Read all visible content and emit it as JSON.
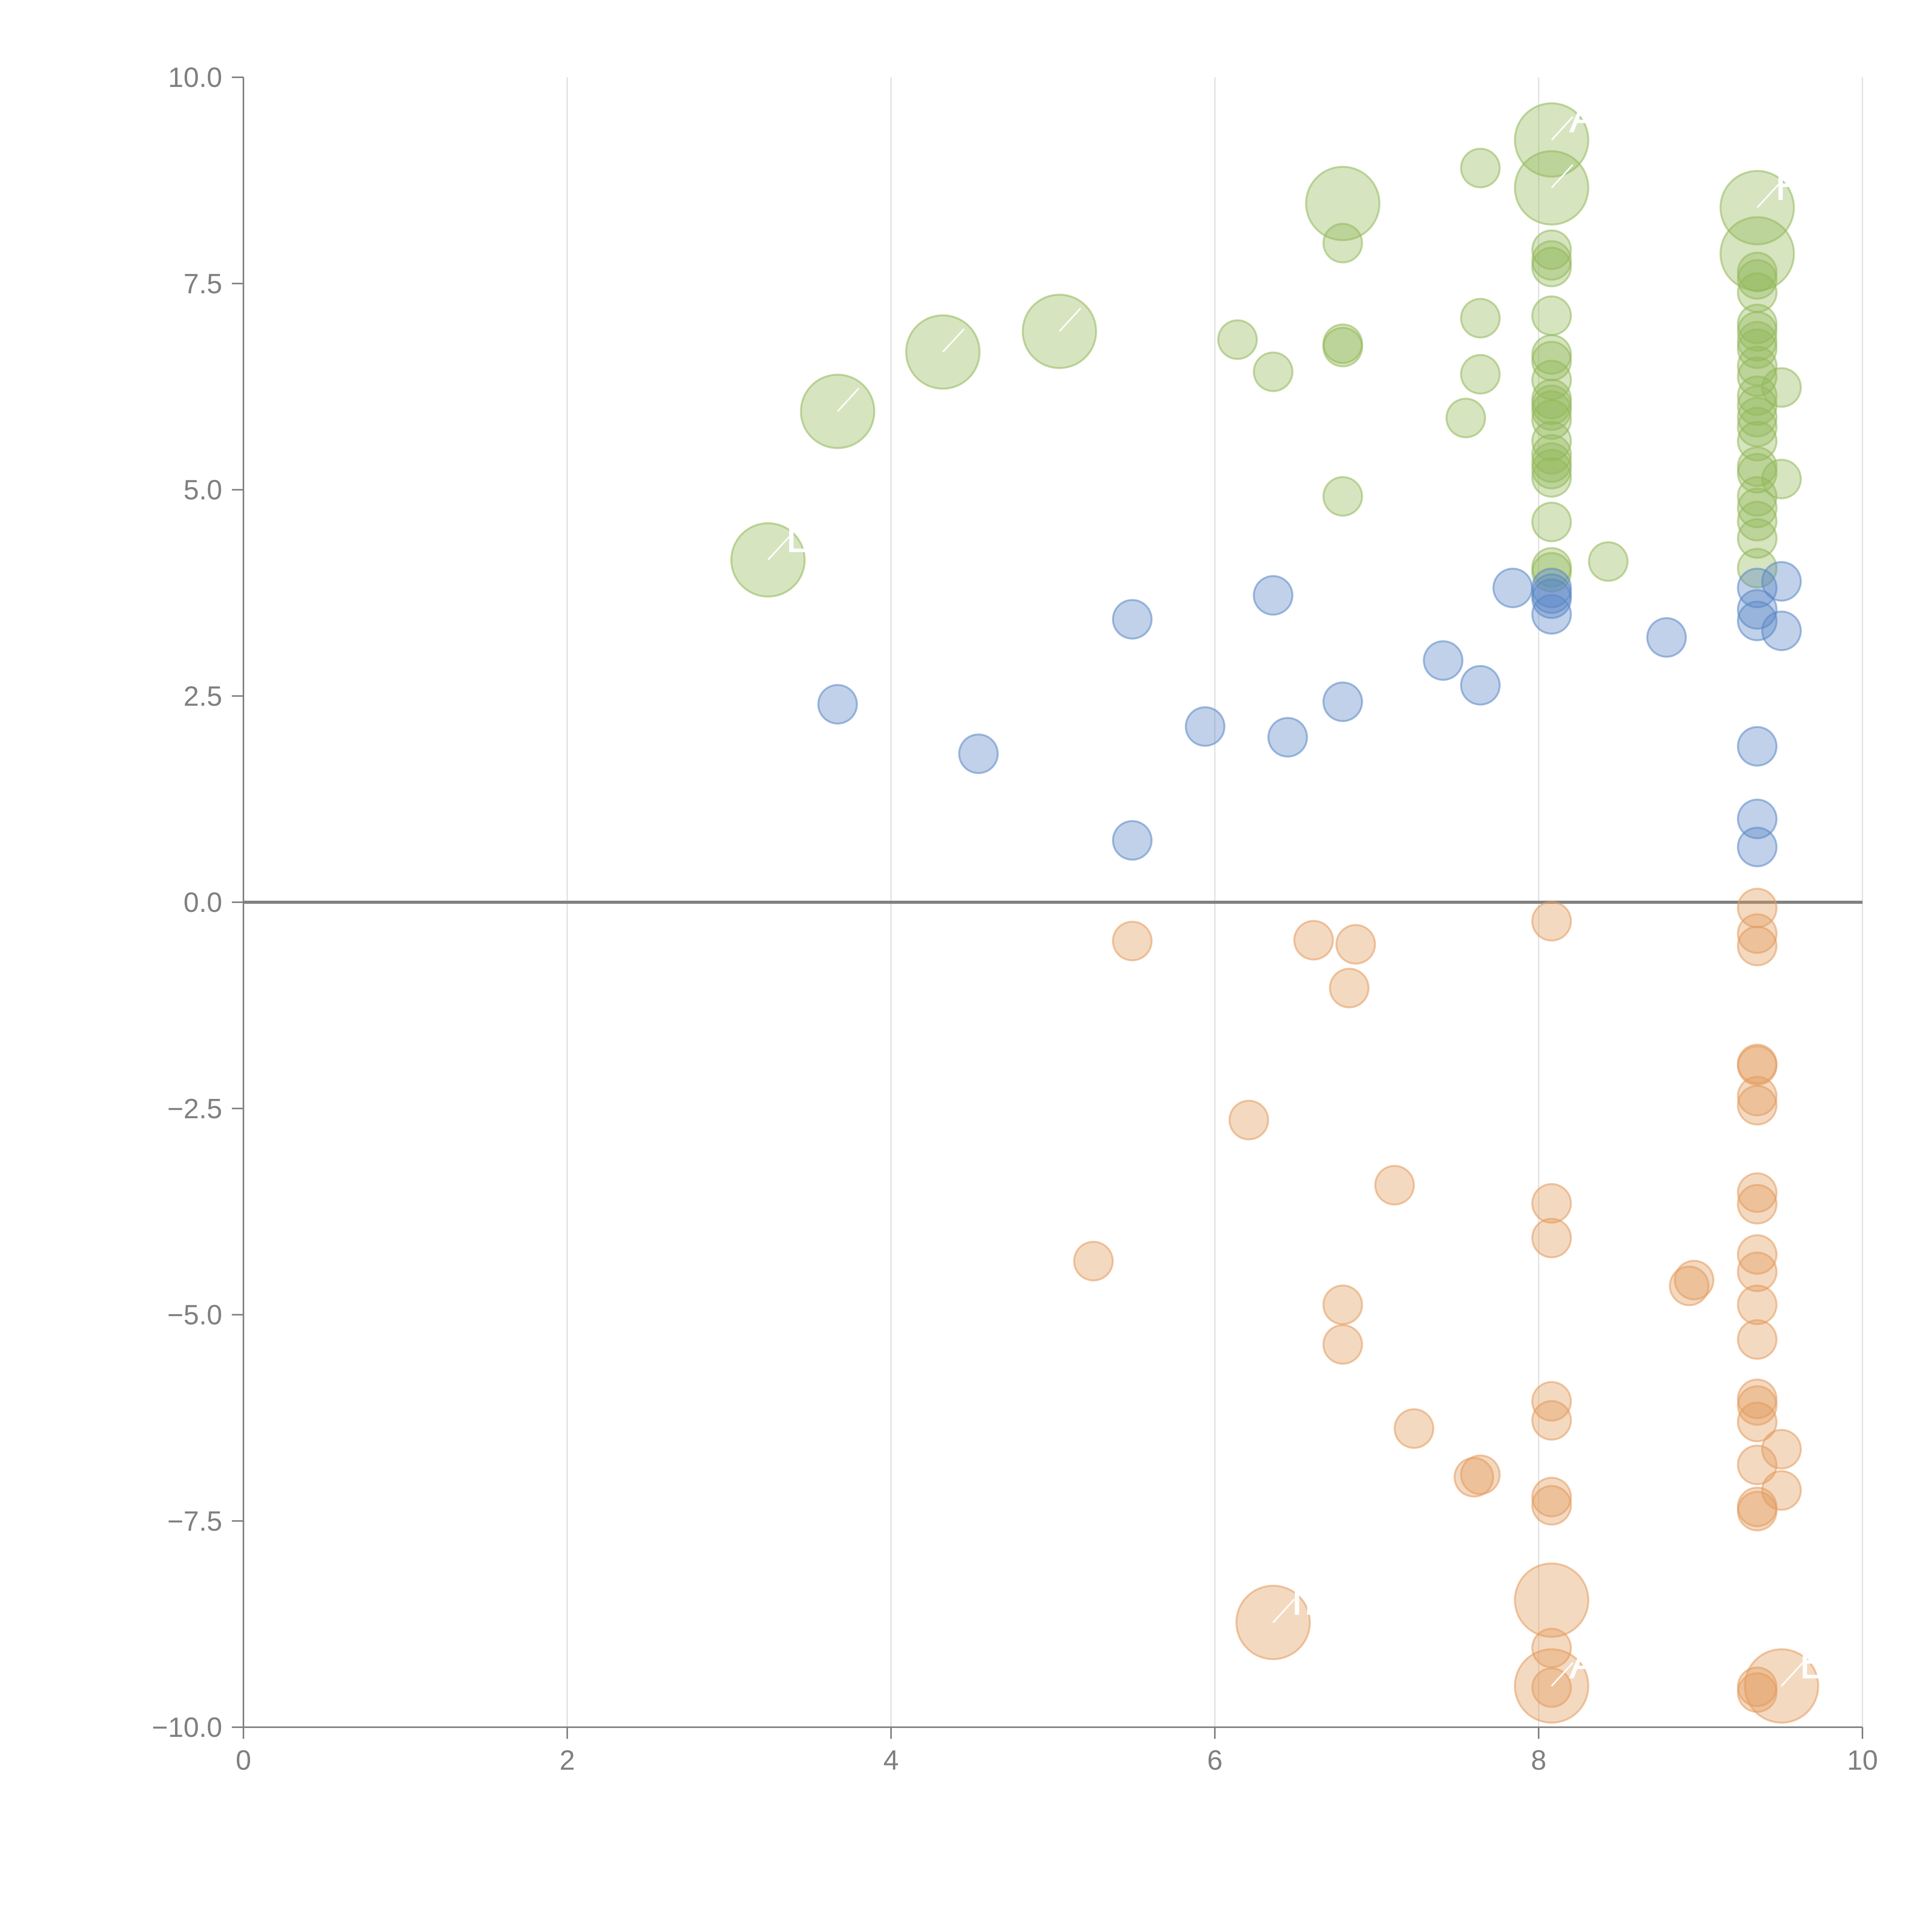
{
  "chart_data": {
    "type": "scatter",
    "title": "",
    "xlabel": "",
    "ylabel": "",
    "xlim": [
      0,
      10
    ],
    "ylim": [
      -10,
      10
    ],
    "grid": "vertical",
    "legend": "none",
    "x_ticks": [
      "0",
      "2",
      "4",
      "6",
      "8",
      "10"
    ],
    "y_ticks": [
      "10.0",
      "7.5",
      "5.0",
      "2.5",
      "0.0",
      "−2.5",
      "−5.0",
      "−7.5",
      "−10.0"
    ],
    "colors": {
      "green": "#93b85a",
      "blue": "#5a87c6",
      "orange": "#e39a5c",
      "axis": "#808080",
      "grid": "#dddddd"
    },
    "series": [
      {
        "name": "green",
        "color": "#93b85a",
        "points": [
          {
            "x": 3.24,
            "y": 4.15,
            "size": "large",
            "label": "L"
          },
          {
            "x": 3.67,
            "y": 5.95,
            "size": "large",
            "label": ""
          },
          {
            "x": 4.32,
            "y": 6.67,
            "size": "large",
            "label": ""
          },
          {
            "x": 5.04,
            "y": 6.92,
            "size": "large",
            "label": ""
          },
          {
            "x": 6.14,
            "y": 6.82
          },
          {
            "x": 6.36,
            "y": 6.43
          },
          {
            "x": 6.79,
            "y": 8.47,
            "size": "large"
          },
          {
            "x": 6.79,
            "y": 7.99
          },
          {
            "x": 6.79,
            "y": 6.77
          },
          {
            "x": 6.79,
            "y": 6.73
          },
          {
            "x": 6.79,
            "y": 4.92
          },
          {
            "x": 7.55,
            "y": 5.87
          },
          {
            "x": 7.64,
            "y": 8.9
          },
          {
            "x": 7.64,
            "y": 7.08
          },
          {
            "x": 7.64,
            "y": 6.4
          },
          {
            "x": 8.08,
            "y": 9.24,
            "size": "large",
            "label": "A"
          },
          {
            "x": 8.08,
            "y": 8.66,
            "size": "large",
            "label": ""
          },
          {
            "x": 8.08,
            "y": 7.91
          },
          {
            "x": 8.08,
            "y": 7.78
          },
          {
            "x": 8.08,
            "y": 7.7
          },
          {
            "x": 8.08,
            "y": 7.11
          },
          {
            "x": 8.08,
            "y": 6.64
          },
          {
            "x": 8.08,
            "y": 6.56
          },
          {
            "x": 8.08,
            "y": 6.33
          },
          {
            "x": 8.08,
            "y": 6.1
          },
          {
            "x": 8.08,
            "y": 6.03
          },
          {
            "x": 8.08,
            "y": 5.96
          },
          {
            "x": 8.08,
            "y": 5.85
          },
          {
            "x": 8.08,
            "y": 5.59
          },
          {
            "x": 8.08,
            "y": 5.43
          },
          {
            "x": 8.08,
            "y": 5.33
          },
          {
            "x": 8.08,
            "y": 5.25
          },
          {
            "x": 8.08,
            "y": 5.15
          },
          {
            "x": 8.08,
            "y": 4.61
          },
          {
            "x": 8.08,
            "y": 4.06
          },
          {
            "x": 8.08,
            "y": 4.0
          },
          {
            "x": 8.43,
            "y": 4.13
          },
          {
            "x": 9.35,
            "y": 8.42,
            "size": "large",
            "label": "FX"
          },
          {
            "x": 9.35,
            "y": 7.86,
            "size": "large"
          },
          {
            "x": 9.35,
            "y": 7.64
          },
          {
            "x": 9.35,
            "y": 7.55
          },
          {
            "x": 9.35,
            "y": 7.39
          },
          {
            "x": 9.35,
            "y": 7.01
          },
          {
            "x": 9.35,
            "y": 6.92
          },
          {
            "x": 9.35,
            "y": 6.8
          },
          {
            "x": 9.35,
            "y": 6.71
          },
          {
            "x": 9.35,
            "y": 6.5
          },
          {
            "x": 9.35,
            "y": 6.37
          },
          {
            "x": 9.35,
            "y": 6.14
          },
          {
            "x": 9.35,
            "y": 6.02
          },
          {
            "x": 9.35,
            "y": 5.88
          },
          {
            "x": 9.35,
            "y": 5.76
          },
          {
            "x": 9.35,
            "y": 5.59
          },
          {
            "x": 9.35,
            "y": 5.28
          },
          {
            "x": 9.35,
            "y": 5.2
          },
          {
            "x": 9.35,
            "y": 4.92
          },
          {
            "x": 9.35,
            "y": 4.78
          },
          {
            "x": 9.35,
            "y": 4.62
          },
          {
            "x": 9.35,
            "y": 4.41
          },
          {
            "x": 9.35,
            "y": 4.05
          },
          {
            "x": 9.5,
            "y": 6.24
          },
          {
            "x": 9.5,
            "y": 5.13
          }
        ]
      },
      {
        "name": "blue",
        "color": "#5a87c6",
        "points": [
          {
            "x": 3.67,
            "y": 2.4
          },
          {
            "x": 4.54,
            "y": 1.8
          },
          {
            "x": 5.49,
            "y": 3.43
          },
          {
            "x": 5.49,
            "y": 0.75
          },
          {
            "x": 5.94,
            "y": 2.13
          },
          {
            "x": 6.36,
            "y": 3.72
          },
          {
            "x": 6.45,
            "y": 2.0
          },
          {
            "x": 6.79,
            "y": 2.43
          },
          {
            "x": 7.41,
            "y": 2.93
          },
          {
            "x": 7.64,
            "y": 2.63
          },
          {
            "x": 7.84,
            "y": 3.81
          },
          {
            "x": 8.08,
            "y": 3.81
          },
          {
            "x": 8.08,
            "y": 3.74
          },
          {
            "x": 8.08,
            "y": 3.68
          },
          {
            "x": 8.08,
            "y": 3.49
          },
          {
            "x": 8.79,
            "y": 3.21
          },
          {
            "x": 9.35,
            "y": 3.81
          },
          {
            "x": 9.35,
            "y": 3.55
          },
          {
            "x": 9.35,
            "y": 3.41
          },
          {
            "x": 9.35,
            "y": 1.89
          },
          {
            "x": 9.35,
            "y": 1.01
          },
          {
            "x": 9.35,
            "y": 0.67
          },
          {
            "x": 9.5,
            "y": 3.89
          },
          {
            "x": 9.5,
            "y": 3.29
          }
        ]
      },
      {
        "name": "orange",
        "color": "#e39a5c",
        "points": [
          {
            "x": 5.25,
            "y": -4.35
          },
          {
            "x": 5.49,
            "y": -0.47
          },
          {
            "x": 6.21,
            "y": -2.64
          },
          {
            "x": 6.36,
            "y": -8.73,
            "size": "large",
            "label": "IN"
          },
          {
            "x": 6.61,
            "y": -0.46
          },
          {
            "x": 6.79,
            "y": -4.88
          },
          {
            "x": 6.79,
            "y": -5.36
          },
          {
            "x": 6.83,
            "y": -1.04
          },
          {
            "x": 6.87,
            "y": -0.51
          },
          {
            "x": 7.11,
            "y": -3.43
          },
          {
            "x": 7.23,
            "y": -6.38
          },
          {
            "x": 7.6,
            "y": -6.97
          },
          {
            "x": 7.64,
            "y": -6.94
          },
          {
            "x": 8.08,
            "y": -0.23
          },
          {
            "x": 8.08,
            "y": -3.65
          },
          {
            "x": 8.08,
            "y": -4.07
          },
          {
            "x": 8.08,
            "y": -6.05
          },
          {
            "x": 8.08,
            "y": -6.28
          },
          {
            "x": 8.08,
            "y": -7.21
          },
          {
            "x": 8.08,
            "y": -7.31
          },
          {
            "x": 8.08,
            "y": -8.46,
            "size": "large"
          },
          {
            "x": 8.08,
            "y": -9.04
          },
          {
            "x": 8.08,
            "y": -9.5,
            "size": "large",
            "label": "AC"
          },
          {
            "x": 8.08,
            "y": -9.52
          },
          {
            "x": 8.93,
            "y": -4.65
          },
          {
            "x": 8.96,
            "y": -4.58
          },
          {
            "x": 9.35,
            "y": -0.07
          },
          {
            "x": 9.35,
            "y": -0.38
          },
          {
            "x": 9.35,
            "y": -0.53
          },
          {
            "x": 9.35,
            "y": -1.96
          },
          {
            "x": 9.35,
            "y": -1.98
          },
          {
            "x": 9.35,
            "y": -2.35
          },
          {
            "x": 9.35,
            "y": -2.46
          },
          {
            "x": 9.35,
            "y": -3.52
          },
          {
            "x": 9.35,
            "y": -3.66
          },
          {
            "x": 9.35,
            "y": -4.27
          },
          {
            "x": 9.35,
            "y": -4.48
          },
          {
            "x": 9.35,
            "y": -4.88
          },
          {
            "x": 9.35,
            "y": -5.3
          },
          {
            "x": 9.35,
            "y": -6.02
          },
          {
            "x": 9.35,
            "y": -6.1
          },
          {
            "x": 9.35,
            "y": -6.3
          },
          {
            "x": 9.35,
            "y": -6.82
          },
          {
            "x": 9.35,
            "y": -7.33
          },
          {
            "x": 9.35,
            "y": -7.38
          },
          {
            "x": 9.35,
            "y": -9.51
          },
          {
            "x": 9.35,
            "y": -9.58
          },
          {
            "x": 9.5,
            "y": -6.63
          },
          {
            "x": 9.5,
            "y": -7.13
          },
          {
            "x": 9.5,
            "y": -9.5,
            "size": "large",
            "label": "E"
          }
        ]
      }
    ]
  }
}
